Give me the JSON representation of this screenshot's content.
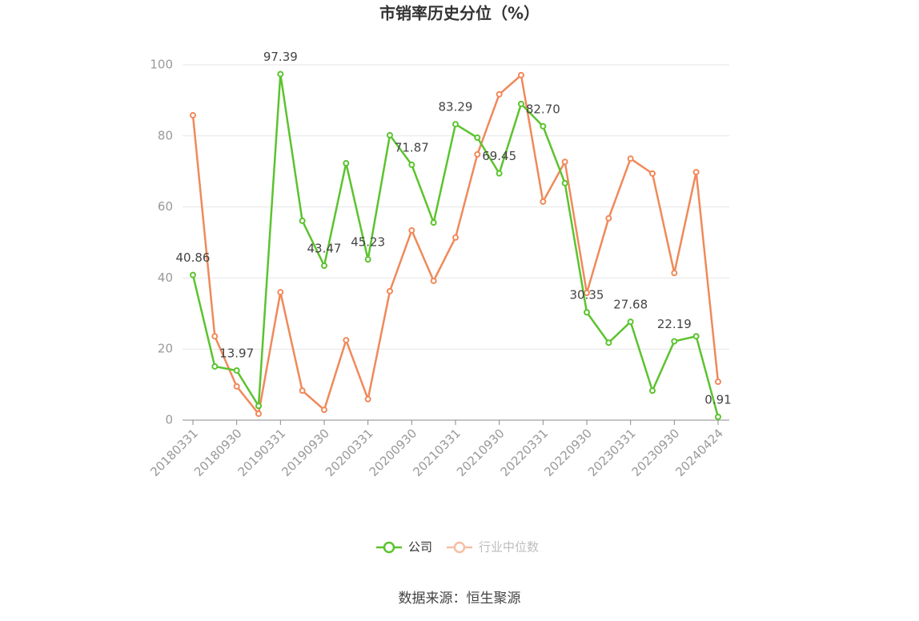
{
  "chart_data": {
    "type": "line",
    "title": "市销率历史分位（%）",
    "categories": [
      "20180331",
      null,
      "20180930",
      null,
      "20190331",
      null,
      "20190930",
      null,
      "20200331",
      null,
      "20200930",
      null,
      "20210331",
      null,
      "20210930",
      null,
      "20220331",
      null,
      "20220930",
      null,
      "20230331",
      null,
      "20230930",
      null,
      "20240424"
    ],
    "series": [
      {
        "name": "公司",
        "color": "#5bc32e",
        "values": [
          40.86,
          15.1,
          13.97,
          4.0,
          97.39,
          56.1,
          43.47,
          72.3,
          45.23,
          80.2,
          71.87,
          55.6,
          83.29,
          79.5,
          69.45,
          89.0,
          82.7,
          66.7,
          30.35,
          21.8,
          27.68,
          8.3,
          22.19,
          23.6,
          0.91
        ],
        "value_labels": [
          "40.86",
          null,
          "13.97",
          null,
          "97.39",
          null,
          "43.47",
          null,
          "45.23",
          null,
          "71.87",
          null,
          "83.29",
          null,
          "69.45",
          null,
          "82.70",
          null,
          "30.35",
          null,
          "27.68",
          null,
          "22.19",
          null,
          "0.91"
        ]
      },
      {
        "name": "行业中位数",
        "color": "#f0895a",
        "values": [
          85.8,
          23.6,
          9.5,
          1.8,
          36.0,
          8.3,
          2.9,
          22.5,
          5.9,
          36.3,
          53.4,
          39.2,
          51.4,
          74.8,
          91.7,
          97.1,
          61.5,
          72.7,
          35.8,
          56.8,
          73.6,
          69.4,
          41.4,
          69.8,
          10.8
        ]
      }
    ],
    "ylim": [
      0,
      100
    ],
    "yticks": [
      0,
      20,
      40,
      60,
      80,
      100
    ],
    "grid": true,
    "source": "数据来源：恒生聚源"
  }
}
